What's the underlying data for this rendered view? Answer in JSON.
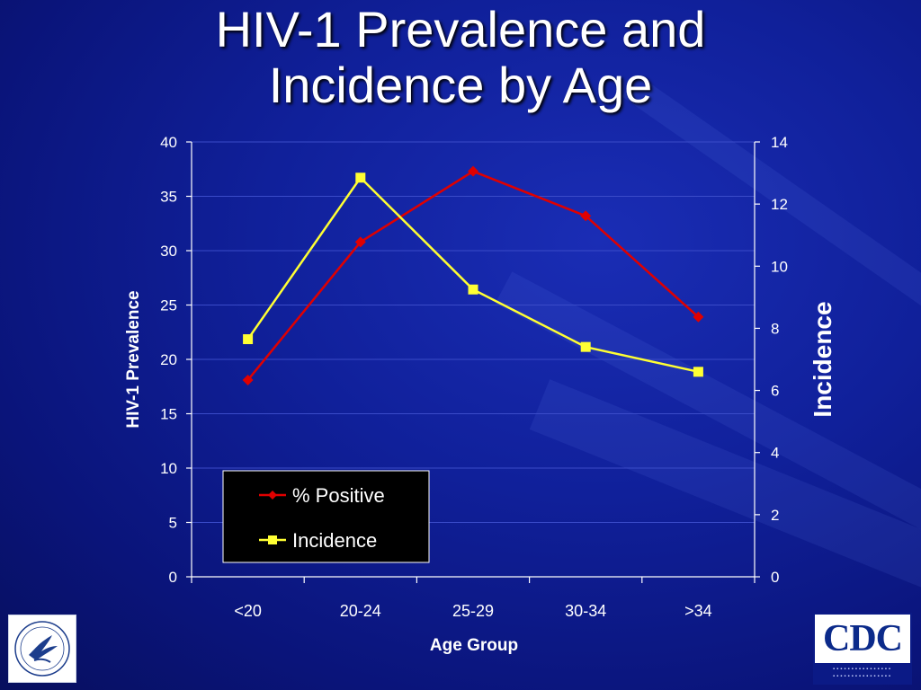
{
  "slide": {
    "title_line1": "HIV-1 Prevalence and",
    "title_line2": "Incidence by Age"
  },
  "logos": {
    "left_icon": "hhs-eagle-seal-icon",
    "right_text": "CDC"
  },
  "colors": {
    "background": "#10209a",
    "prevalence_line": "#e00000",
    "incidence_line": "#ffff33",
    "axis": "#ffffff",
    "legend_bg": "#000000"
  },
  "chart_data": {
    "type": "line",
    "categories": [
      "<20",
      "20-24",
      "25-29",
      "30-34",
      ">34"
    ],
    "xlabel": "Age Group",
    "ylabel": "HIV-1 Prevalence",
    "ylabel_right": "Incidence",
    "ylim": [
      0,
      40
    ],
    "ylim_right": [
      0,
      14
    ],
    "yticks": [
      0,
      5,
      10,
      15,
      20,
      25,
      30,
      35,
      40
    ],
    "yticks_right": [
      0,
      2,
      4,
      6,
      8,
      10,
      12,
      14
    ],
    "grid": true,
    "legend_position": "bottom-left",
    "series": [
      {
        "name": "% Positive",
        "axis": "left",
        "marker": "diamond",
        "values": [
          18.1,
          30.8,
          37.3,
          33.2,
          23.9
        ]
      },
      {
        "name": "Incidence",
        "axis": "right",
        "marker": "square",
        "values": [
          7.65,
          12.85,
          9.25,
          7.4,
          6.6
        ]
      }
    ]
  }
}
